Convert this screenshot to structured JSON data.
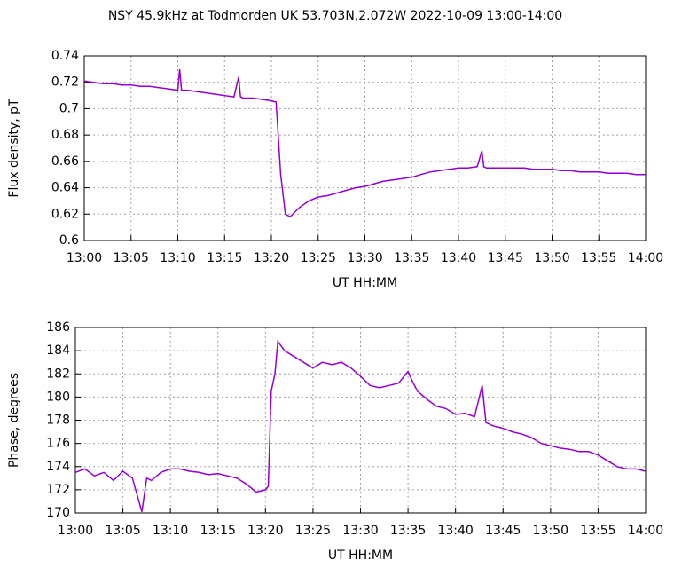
{
  "chart_data": [
    {
      "type": "line",
      "title": "NSY 45.9kHz at Todmorden UK 53.703N,2.072W 2022-10-09 13:00-14:00",
      "x_label": "UT HH:MM",
      "y_label": "Flux density, pT",
      "grid": true,
      "xlim": [
        0,
        60
      ],
      "xticks": [
        {
          "value": 0,
          "label": "13:00"
        },
        {
          "value": 5,
          "label": "13:05"
        },
        {
          "value": 10,
          "label": "13:10"
        },
        {
          "value": 15,
          "label": "13:15"
        },
        {
          "value": 20,
          "label": "13:20"
        },
        {
          "value": 25,
          "label": "13:25"
        },
        {
          "value": 30,
          "label": "13:30"
        },
        {
          "value": 35,
          "label": "13:35"
        },
        {
          "value": 40,
          "label": "13:40"
        },
        {
          "value": 45,
          "label": "13:45"
        },
        {
          "value": 50,
          "label": "13:50"
        },
        {
          "value": 55,
          "label": "13:55"
        },
        {
          "value": 60,
          "label": "14:00"
        }
      ],
      "ylim": [
        0.6,
        0.74
      ],
      "yticks": [
        0.6,
        0.62,
        0.64,
        0.66,
        0.68,
        0.7,
        0.72,
        0.74
      ],
      "x": [
        0,
        1,
        2,
        3,
        4,
        5,
        6,
        7,
        8,
        9,
        10,
        10.2,
        10.4,
        11,
        12,
        13,
        14,
        15,
        16,
        16.5,
        16.7,
        17,
        18,
        19,
        20,
        20.5,
        21,
        21.5,
        22,
        23,
        24,
        25,
        26,
        27,
        28,
        29,
        30,
        31,
        32,
        33,
        34,
        35,
        36,
        37,
        38,
        39,
        40,
        41,
        42,
        42.5,
        42.7,
        43,
        44,
        45,
        46,
        47,
        48,
        49,
        50,
        51,
        52,
        53,
        54,
        55,
        56,
        57,
        58,
        59,
        60
      ],
      "series": [
        {
          "name": "Flux density",
          "color": "#9400d3",
          "values": [
            0.721,
            0.72,
            0.719,
            0.719,
            0.718,
            0.718,
            0.717,
            0.717,
            0.716,
            0.715,
            0.714,
            0.73,
            0.714,
            0.714,
            0.713,
            0.712,
            0.711,
            0.71,
            0.709,
            0.724,
            0.709,
            0.708,
            0.708,
            0.707,
            0.706,
            0.705,
            0.65,
            0.62,
            0.618,
            0.625,
            0.63,
            0.633,
            0.634,
            0.636,
            0.638,
            0.64,
            0.641,
            0.643,
            0.645,
            0.646,
            0.647,
            0.648,
            0.65,
            0.652,
            0.653,
            0.654,
            0.655,
            0.655,
            0.656,
            0.668,
            0.656,
            0.655,
            0.655,
            0.655,
            0.655,
            0.655,
            0.654,
            0.654,
            0.654,
            0.653,
            0.653,
            0.652,
            0.652,
            0.652,
            0.651,
            0.651,
            0.651,
            0.65,
            0.65
          ]
        }
      ]
    },
    {
      "type": "line",
      "x_label": "UT HH:MM",
      "y_label": "Phase, degrees",
      "grid": true,
      "xlim": [
        0,
        60
      ],
      "xticks": [
        {
          "value": 0,
          "label": "13:00"
        },
        {
          "value": 5,
          "label": "13:05"
        },
        {
          "value": 10,
          "label": "13:10"
        },
        {
          "value": 15,
          "label": "13:15"
        },
        {
          "value": 20,
          "label": "13:20"
        },
        {
          "value": 25,
          "label": "13:25"
        },
        {
          "value": 30,
          "label": "13:30"
        },
        {
          "value": 35,
          "label": "13:35"
        },
        {
          "value": 40,
          "label": "13:40"
        },
        {
          "value": 45,
          "label": "13:45"
        },
        {
          "value": 50,
          "label": "13:50"
        },
        {
          "value": 55,
          "label": "13:55"
        },
        {
          "value": 60,
          "label": "14:00"
        }
      ],
      "ylim": [
        170,
        186
      ],
      "yticks": [
        170,
        172,
        174,
        176,
        178,
        180,
        182,
        184,
        186
      ],
      "x": [
        0,
        1,
        2,
        3,
        4,
        5,
        6,
        7,
        7.5,
        8,
        9,
        10,
        11,
        12,
        13,
        14,
        15,
        16,
        17,
        18,
        19,
        20,
        20.3,
        20.6,
        21,
        21.3,
        22,
        23,
        24,
        25,
        26,
        27,
        28,
        29,
        30,
        31,
        32,
        33,
        34,
        35,
        35.5,
        36,
        37,
        38,
        39,
        40,
        41,
        42,
        42.8,
        43.2,
        44,
        45,
        46,
        47,
        48,
        49,
        50,
        51,
        52,
        53,
        54,
        55,
        56,
        57,
        58,
        59,
        60
      ],
      "series": [
        {
          "name": "Phase",
          "color": "#9400d3",
          "values": [
            173.5,
            173.8,
            173.2,
            173.5,
            172.8,
            173.6,
            173.0,
            170.1,
            173.0,
            172.8,
            173.5,
            173.8,
            173.8,
            173.6,
            173.5,
            173.3,
            173.4,
            173.2,
            173.0,
            172.5,
            171.8,
            172.0,
            172.3,
            180.5,
            182.0,
            184.8,
            184.0,
            183.5,
            183.0,
            182.5,
            183.0,
            182.8,
            183.0,
            182.5,
            181.8,
            181.0,
            180.8,
            181.0,
            181.2,
            182.2,
            181.3,
            180.5,
            179.8,
            179.2,
            179.0,
            178.5,
            178.6,
            178.3,
            181.0,
            177.8,
            177.5,
            177.3,
            177.0,
            176.8,
            176.5,
            176.0,
            175.8,
            175.6,
            175.5,
            175.3,
            175.3,
            175.0,
            174.5,
            174.0,
            173.8,
            173.8,
            173.6
          ]
        }
      ]
    }
  ]
}
